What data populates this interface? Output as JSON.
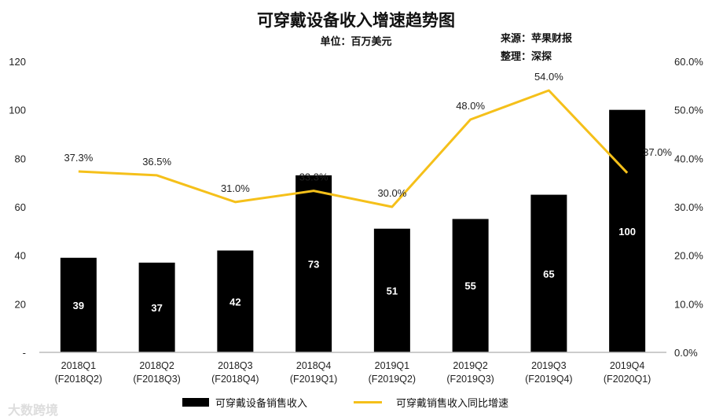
{
  "chart_data": {
    "type": "bar+line",
    "title": "可穿戴设备收入增速趋势图",
    "subtitle": "单位：百万美元",
    "notes": [
      "来源：苹果财报",
      "整理：深探"
    ],
    "categories": [
      [
        "2018Q1",
        "(F2018Q2)"
      ],
      [
        "2018Q2",
        "(F2018Q3)"
      ],
      [
        "2018Q3",
        "(F2018Q4)"
      ],
      [
        "2018Q4",
        "(F2019Q1)"
      ],
      [
        "2019Q1",
        "(F2019Q2)"
      ],
      [
        "2019Q2",
        "(F2019Q3)"
      ],
      [
        "2019Q3",
        "(F2019Q4)"
      ],
      [
        "2019Q4",
        "(F2020Q1)"
      ]
    ],
    "series": [
      {
        "name": "可穿戴设备销售收入",
        "type": "bar",
        "axis": "left",
        "color": "#000000",
        "values": [
          39,
          37,
          42,
          73,
          51,
          55,
          65,
          100
        ],
        "labels": [
          "39",
          "37",
          "42",
          "73",
          "51",
          "55",
          "65",
          "100"
        ]
      },
      {
        "name": "可穿戴销售收入同比增速",
        "type": "line",
        "axis": "right",
        "color": "#F5C01A",
        "values": [
          37.3,
          36.5,
          31.0,
          33.3,
          30.0,
          48.0,
          54.0,
          37.0
        ],
        "labels": [
          "37.3%",
          "36.5%",
          "31.0%",
          "33.3%",
          "30.0%",
          "48.0%",
          "54.0%",
          "37.0%"
        ]
      }
    ],
    "left_axis": {
      "range": [
        0,
        120
      ],
      "ticks": [
        "-",
        "20",
        "40",
        "60",
        "80",
        "100",
        "120"
      ]
    },
    "right_axis": {
      "range": [
        0,
        60
      ],
      "ticks": [
        "0.0%",
        "10.0%",
        "20.0%",
        "30.0%",
        "40.0%",
        "50.0%",
        "60.0%"
      ]
    },
    "grid": false,
    "legend": "bottom"
  },
  "watermark": "大数跨境"
}
